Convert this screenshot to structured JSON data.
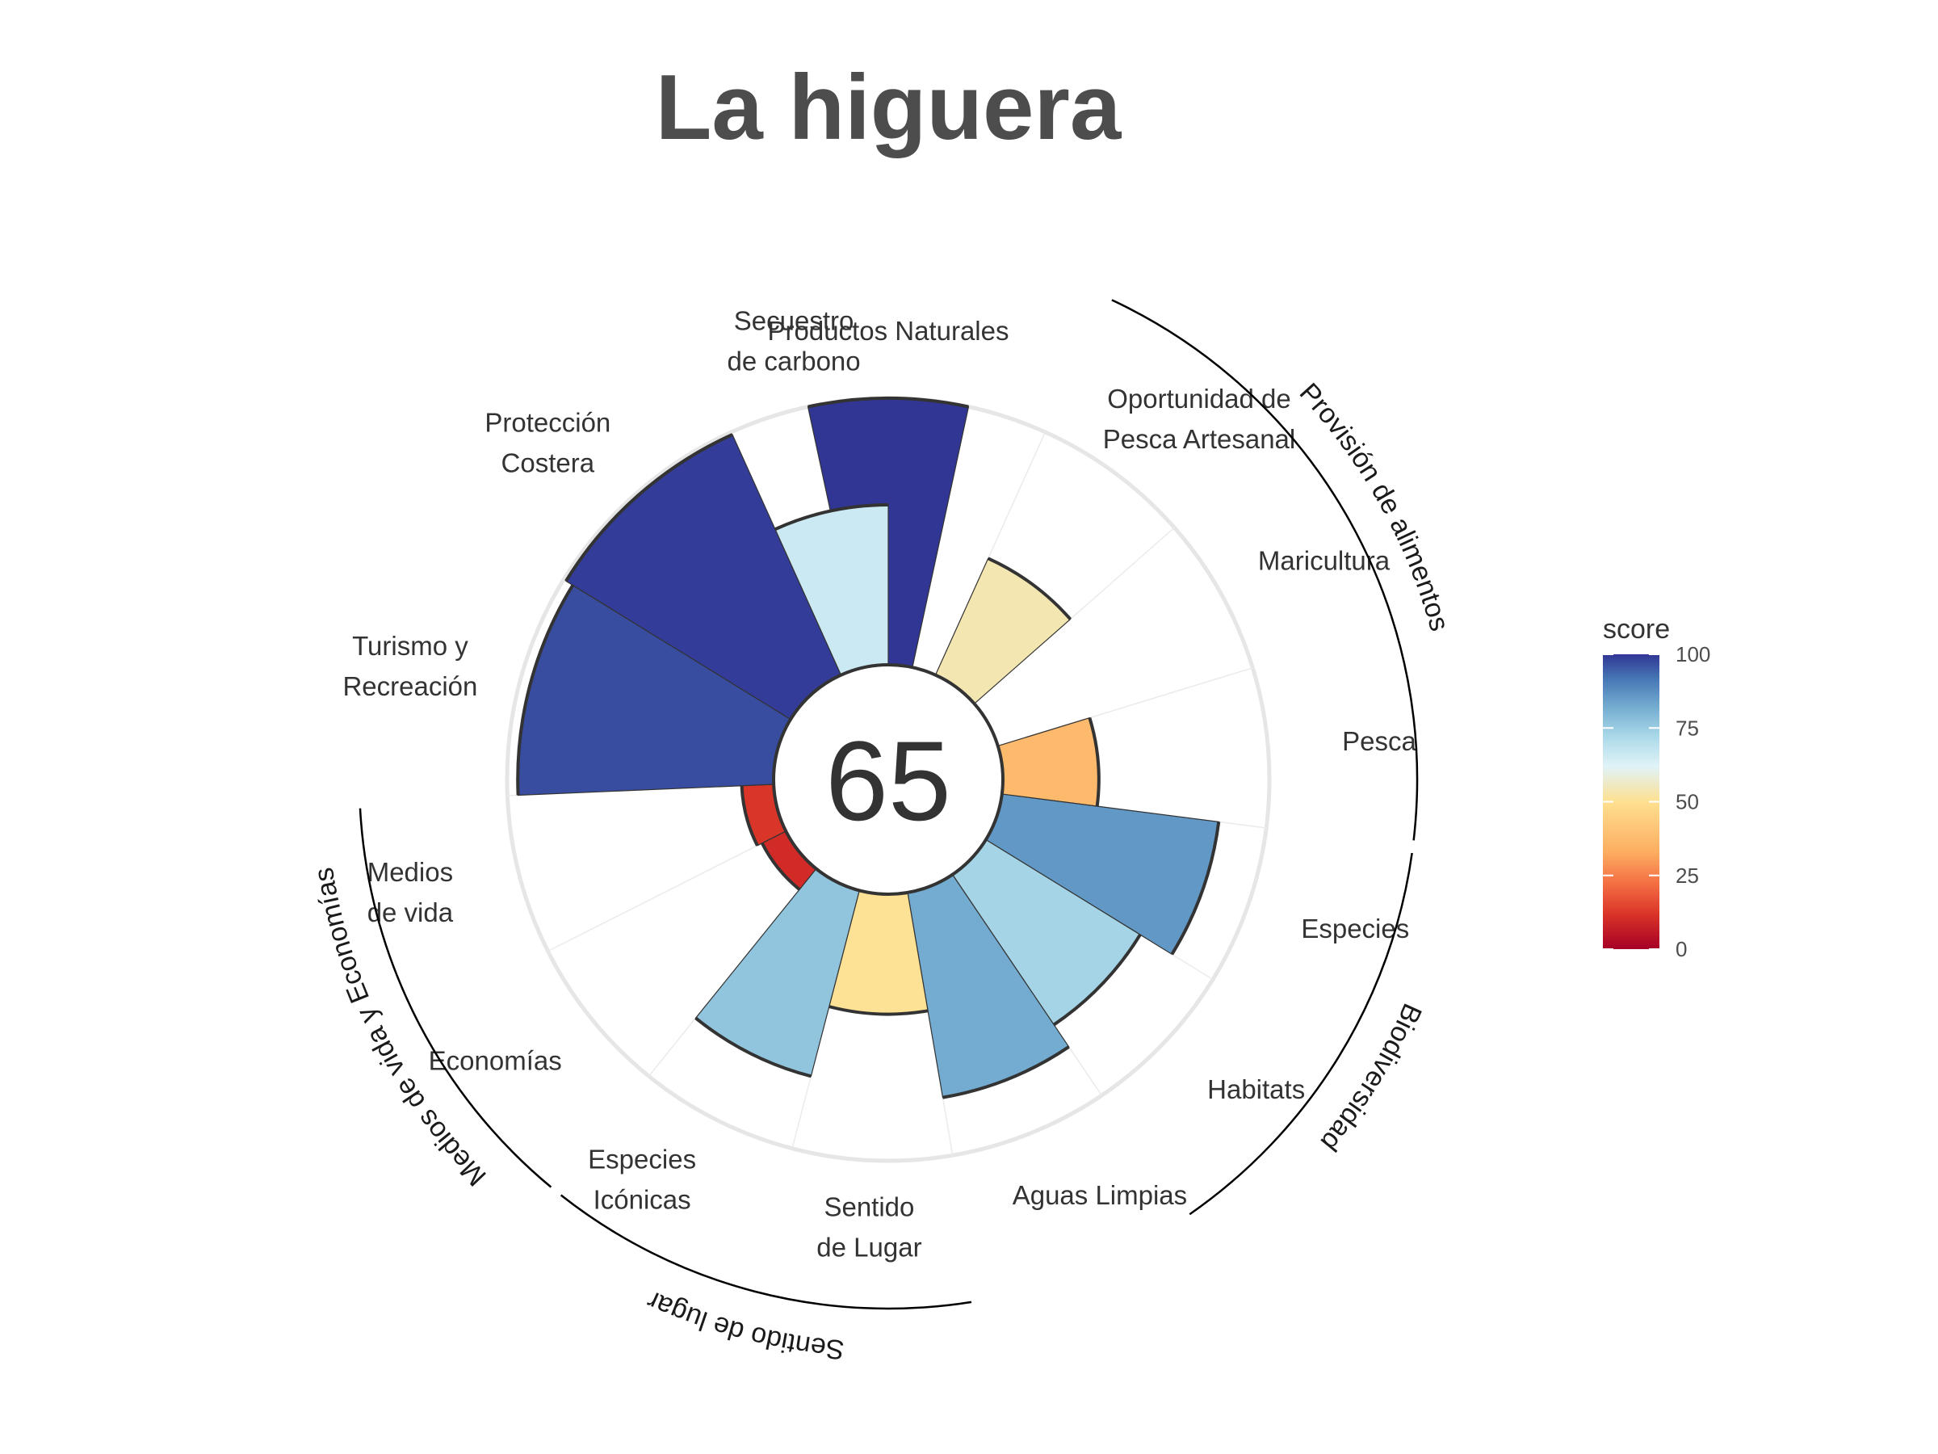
{
  "chart_data": {
    "type": "flower",
    "title": "La higuera",
    "center_score": "65",
    "ylim": [
      0,
      100
    ],
    "petals": [
      {
        "label": [
          "Productos Naturales"
        ],
        "value": 100,
        "weight": 1
      },
      {
        "label": [
          "Oportunidad de",
          "Pesca Artesanal"
        ],
        "value": 48,
        "weight": 1
      },
      {
        "label": [
          "Maricultura"
        ],
        "value": 0,
        "weight": 1
      },
      {
        "label": [
          "Pesca"
        ],
        "value": 36,
        "weight": 1
      },
      {
        "label": [
          "Especies"
        ],
        "value": 82,
        "weight": 1
      },
      {
        "label": [
          "Habitats"
        ],
        "value": 68,
        "weight": 1
      },
      {
        "label": [
          "Aguas Limpias"
        ],
        "value": 78,
        "weight": 1
      },
      {
        "label": [
          "Sentido",
          "de Lugar"
        ],
        "value": 45,
        "weight": 1
      },
      {
        "label": [
          "Especies",
          "Icónicas"
        ],
        "value": 72,
        "weight": 1
      },
      {
        "label": [
          "Economías"
        ],
        "value": 10,
        "weight": 1
      },
      {
        "label": [
          "Medios",
          "de vida"
        ],
        "value": 12,
        "weight": 1
      },
      {
        "label": [
          "Turismo y",
          "Recreación"
        ],
        "value": 96,
        "weight": 1.4
      },
      {
        "label": [
          "Protección",
          "Costera"
        ],
        "value": 99,
        "weight": 1.4
      },
      {
        "label": [
          "Secuestro",
          "de carbono"
        ],
        "value": 60,
        "weight": 1
      }
    ],
    "groups": [
      {
        "name": "Provisión de alimentos",
        "first": 1,
        "last": 3
      },
      {
        "name": "Biodiversidad",
        "first": 4,
        "last": 5
      },
      {
        "name": "Sentido de lugar",
        "first": 7,
        "last": 8
      },
      {
        "name": "Medios de vida y Economías",
        "first": 9,
        "last": 10
      }
    ],
    "legend": {
      "title": "score",
      "ticks": [
        0,
        25,
        50,
        75,
        100
      ],
      "colors": [
        "#a50026",
        "#d73027",
        "#f46d43",
        "#fdae61",
        "#fee090",
        "#e0f3f8",
        "#abd9e9",
        "#74add1",
        "#4575b4",
        "#313695"
      ]
    }
  }
}
